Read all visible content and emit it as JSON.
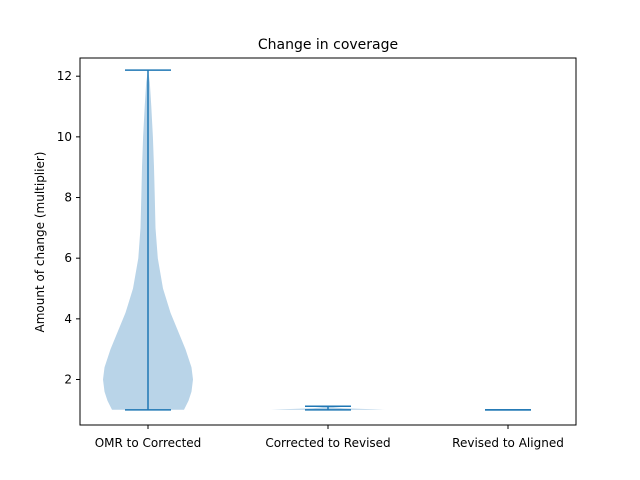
{
  "chart_data": {
    "type": "violin",
    "title": "Change in coverage",
    "xlabel": "",
    "ylabel": "Amount of change (multiplier)",
    "categories": [
      "OMR to Corrected",
      "Corrected to Revised",
      "Revised to Aligned"
    ],
    "ylim": [
      0.5,
      12.6
    ],
    "yticks": [
      2,
      4,
      6,
      8,
      10,
      12
    ],
    "grid": false,
    "colors": {
      "body": "#b9d4e8",
      "line": "#1f77b4",
      "axis": "#000000"
    },
    "violins": [
      {
        "category": "OMR to Corrected",
        "min": 1.0,
        "max": 12.2,
        "density": [
          [
            1.0,
            0.24
          ],
          [
            1.3,
            0.27
          ],
          [
            1.6,
            0.29
          ],
          [
            2.0,
            0.3
          ],
          [
            2.4,
            0.29
          ],
          [
            3.0,
            0.25
          ],
          [
            3.6,
            0.2
          ],
          [
            4.2,
            0.15
          ],
          [
            5.0,
            0.1
          ],
          [
            6.0,
            0.065
          ],
          [
            7.0,
            0.05
          ],
          [
            8.0,
            0.045
          ],
          [
            9.0,
            0.04
          ],
          [
            10.0,
            0.033
          ],
          [
            11.0,
            0.022
          ],
          [
            11.8,
            0.012
          ],
          [
            12.2,
            0.0
          ]
        ]
      },
      {
        "category": "Corrected to Revised",
        "min": 1.0,
        "max": 1.12,
        "density": [
          [
            1.0,
            0.38
          ],
          [
            1.02,
            0.3
          ],
          [
            1.05,
            0.1
          ],
          [
            1.08,
            0.05
          ],
          [
            1.12,
            0.0
          ]
        ]
      },
      {
        "category": "Revised to Aligned",
        "min": 1.0,
        "max": 1.0,
        "density": []
      }
    ]
  }
}
